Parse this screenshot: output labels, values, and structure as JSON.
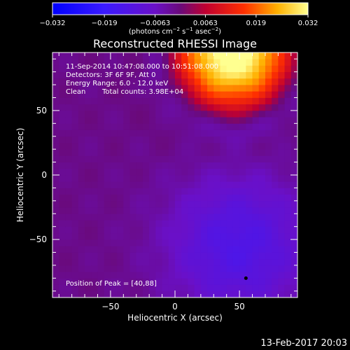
{
  "chart_data": {
    "type": "heatmap",
    "title": "Reconstructed RHESSI Image",
    "xlabel": "Heliocentric X (arcsec)",
    "ylabel": "Heliocentric Y (arcsec)",
    "xlim": [
      -95,
      95
    ],
    "ylim": [
      -95,
      95
    ],
    "x_ticks": [
      -50,
      0,
      50
    ],
    "y_ticks": [
      -50,
      0,
      50
    ],
    "x_tick_labels": [
      "−50",
      "0",
      "50"
    ],
    "y_tick_labels": [
      "−50",
      "0",
      "50"
    ],
    "colorbar": {
      "range": [
        -0.032,
        0.032
      ],
      "tick_labels": [
        "−0.032",
        "−0.019",
        "−0.0063",
        "0.0063",
        "0.019",
        "0.032"
      ],
      "units": "(photons cm",
      "units_sup1": "−2",
      "units_mid": " s",
      "units_sup2": "−1",
      "units_end": " asec",
      "units_sup3": "−2",
      "units_close": ")"
    },
    "annotations": {
      "line1": "11-Sep-2014 10:47:08.000 to 10:51:08.000",
      "line2": "Detectors: 3F 6F 9F, Att 0",
      "line3": "Energy Range: 6.0 - 12.0 keV",
      "line4_a": "Clean",
      "line4_b": "Total counts: 3.98E+04",
      "peak_label": "Position of Peak = [40,88]"
    },
    "peak": [
      40,
      88
    ],
    "marker_point": [
      55,
      -80
    ],
    "colors": {
      "low": "#0000ff",
      "zero": "#7a1a9a",
      "high": "#ffff80"
    }
  },
  "footer_date": "13-Feb-2017 20:03"
}
